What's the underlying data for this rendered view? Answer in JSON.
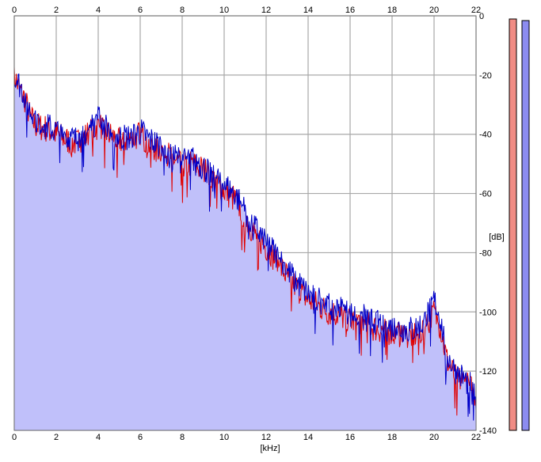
{
  "chart_data": {
    "type": "area",
    "xlabel": "[kHz]",
    "ylabel": "[dB]",
    "xlim": [
      0,
      22
    ],
    "ylim": [
      -140,
      0
    ],
    "x_ticks": [
      "0",
      "2",
      "4",
      "6",
      "8",
      "10",
      "12",
      "14",
      "16",
      "18",
      "20",
      "22"
    ],
    "y_ticks": [
      "0",
      "-20",
      "-40",
      "-60",
      "-80",
      "-100",
      "-120",
      "-140"
    ],
    "grid": true,
    "colors": {
      "fill": "#c0c0fa",
      "left_channel": "#e00000",
      "right_channel": "#0000c8",
      "grid": "#a8a8a8",
      "meter_left": "#f08c84",
      "meter_right": "#8c8cf0"
    },
    "series": [
      {
        "color": "#e00000",
        "x": [
          0,
          0.25,
          0.5,
          0.75,
          1,
          1.5,
          2,
          2.5,
          3,
          3.5,
          4,
          4.5,
          5,
          5.5,
          6,
          6.5,
          7,
          7.5,
          8,
          8.5,
          9,
          9.5,
          10,
          10.5,
          11,
          11.5,
          12,
          12.5,
          13,
          13.5,
          14,
          14.5,
          15,
          15.5,
          16,
          16.5,
          17,
          17.5,
          18,
          18.5,
          19,
          19.5,
          20,
          20.3,
          20.6,
          21,
          21.5,
          22
        ],
        "values": [
          -20,
          -25,
          -28,
          -34,
          -37,
          -38,
          -40,
          -42,
          -43,
          -40,
          -37,
          -40,
          -42,
          -42,
          -40,
          -44,
          -45,
          -48,
          -50,
          -50,
          -52,
          -55,
          -59,
          -62,
          -68,
          -74,
          -78,
          -83,
          -88,
          -92,
          -96,
          -98,
          -100,
          -101,
          -103,
          -103,
          -105,
          -106,
          -107,
          -108,
          -108,
          -106,
          -100,
          -105,
          -116,
          -122,
          -124,
          -128
        ]
      },
      {
        "color": "#0000c8",
        "x": [
          0,
          0.25,
          0.5,
          0.75,
          1,
          1.5,
          2,
          2.5,
          3,
          3.5,
          4,
          4.5,
          5,
          5.5,
          6,
          6.5,
          7,
          7.5,
          8,
          8.5,
          9,
          9.5,
          10,
          10.5,
          11,
          11.5,
          12,
          12.5,
          13,
          13.5,
          14,
          14.5,
          15,
          15.5,
          16,
          16.5,
          17,
          17.5,
          18,
          18.5,
          19,
          19.5,
          20,
          20.3,
          20.6,
          21,
          21.5,
          22
        ],
        "values": [
          -22,
          -23,
          -27,
          -32,
          -35,
          -37,
          -39,
          -41,
          -42,
          -39,
          -34,
          -39,
          -41,
          -41,
          -39,
          -42,
          -44,
          -47,
          -49,
          -48,
          -51,
          -54,
          -57,
          -60,
          -66,
          -72,
          -76,
          -81,
          -86,
          -90,
          -94,
          -96,
          -98,
          -99,
          -101,
          -101,
          -103,
          -104,
          -105,
          -106,
          -106,
          -104,
          -96,
          -102,
          -114,
          -120,
          -123,
          -126
        ]
      }
    ]
  }
}
